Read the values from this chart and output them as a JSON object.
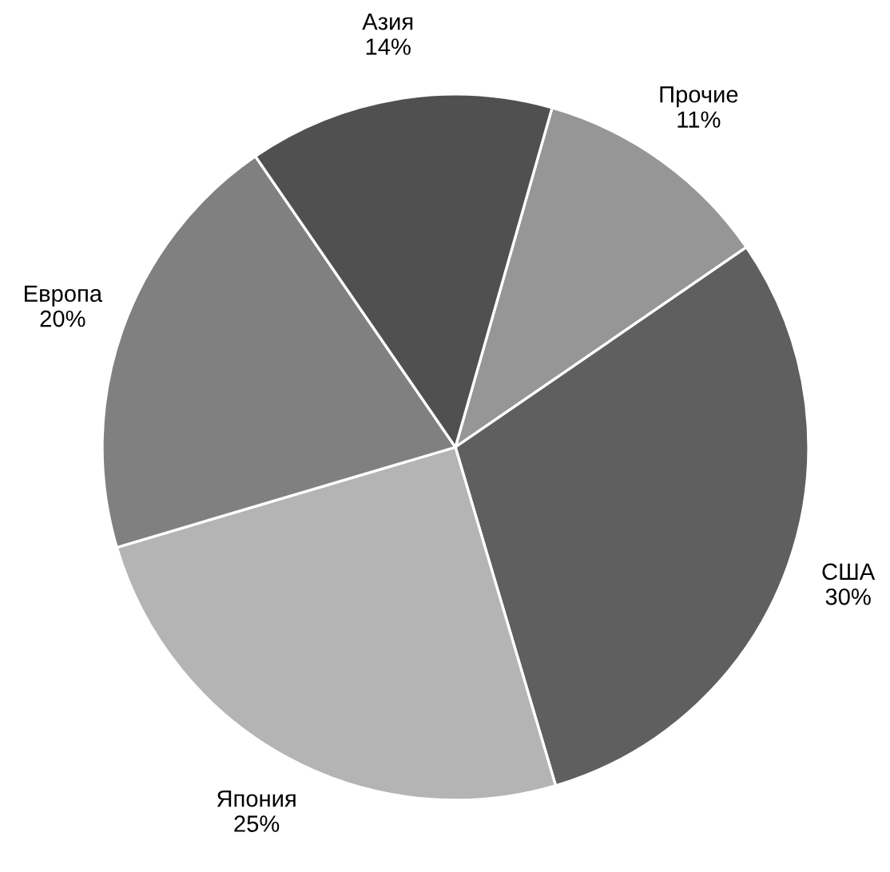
{
  "chart_data": {
    "type": "pie",
    "categories": [
      "Прочие",
      "США",
      "Япония",
      "Европа",
      "Азия"
    ],
    "values": [
      11,
      30,
      25,
      20,
      14
    ],
    "value_labels": [
      "11%",
      "30%",
      "25%",
      "20%",
      "14%"
    ],
    "colors": [
      "#969696",
      "#5f5f5f",
      "#b4b4b4",
      "#808080",
      "#505050"
    ],
    "legend": false
  }
}
